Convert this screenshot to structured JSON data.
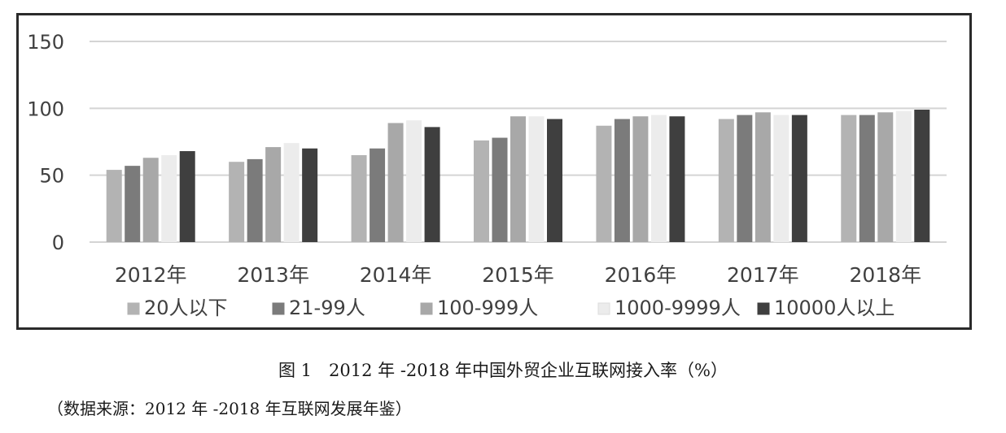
{
  "chart_data": {
    "type": "bar",
    "categories": [
      "2012年",
      "2013年",
      "2014年",
      "2015年",
      "2016年",
      "2017年",
      "2018年"
    ],
    "series": [
      {
        "name": "20人以下",
        "color": "#b3b3b3",
        "values": [
          54,
          60,
          65,
          76,
          87,
          92,
          95
        ]
      },
      {
        "name": "21-99人",
        "color": "#7b7b7b",
        "values": [
          57,
          62,
          70,
          78,
          92,
          95,
          95
        ]
      },
      {
        "name": "100-999人",
        "color": "#a8a8a8",
        "values": [
          63,
          71,
          89,
          94,
          94,
          97,
          97
        ]
      },
      {
        "name": "1000-9999人",
        "color": "#ececec",
        "values": [
          65,
          74,
          91,
          94,
          95,
          95,
          98
        ]
      },
      {
        "name": "10000人以上",
        "color": "#3f3f3f",
        "values": [
          68,
          70,
          86,
          92,
          94,
          95,
          99
        ]
      }
    ],
    "yticks": [
      0,
      50,
      100,
      150
    ],
    "ylim": [
      0,
      150
    ],
    "grid": true,
    "legend_position": "bottom"
  },
  "caption": "图 1　2012 年 -2018 年中国外贸企业互联网接入率（%）",
  "source": "（数据来源：2012 年 -2018 年互联网发展年鉴）"
}
